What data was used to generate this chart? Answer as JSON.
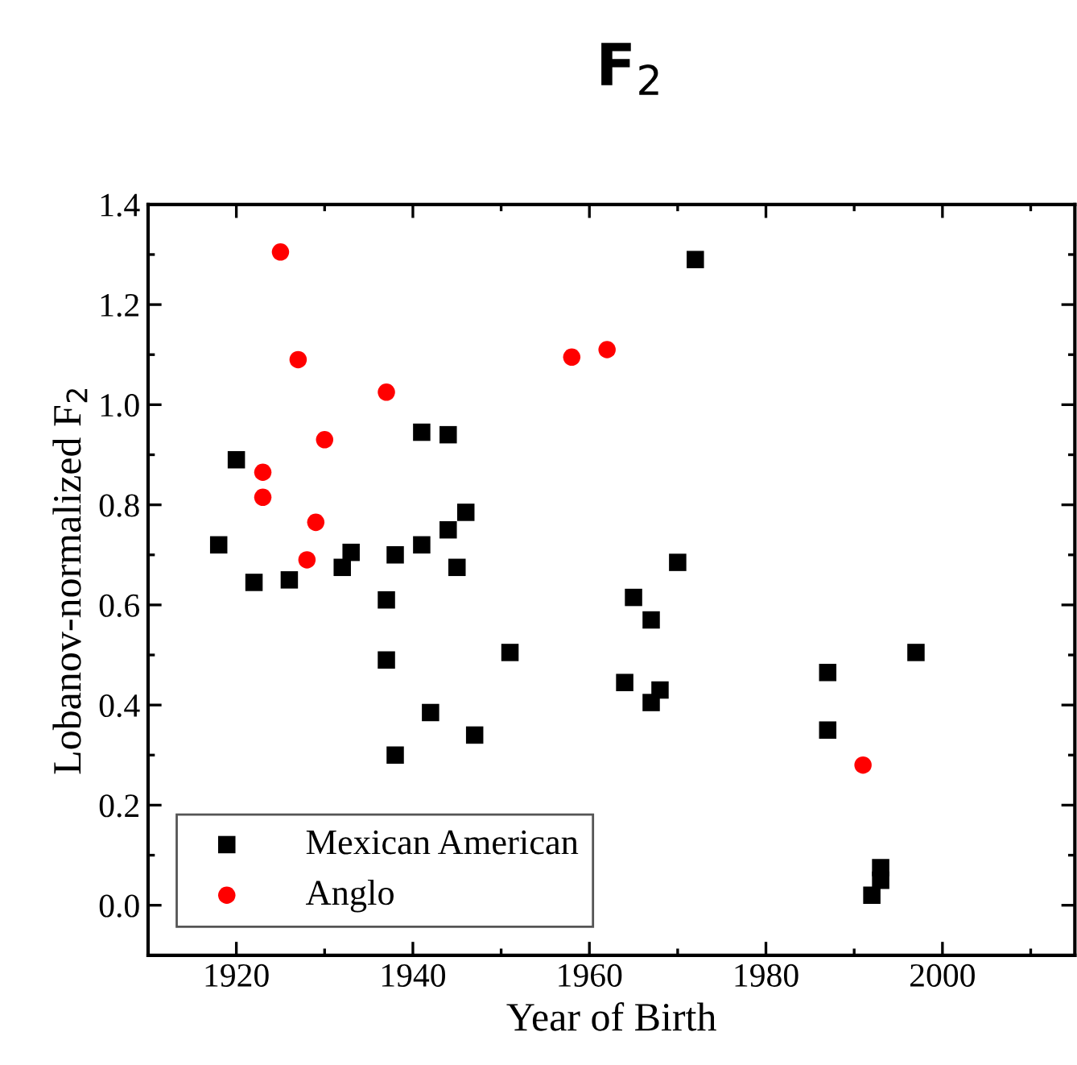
{
  "chart_data": {
    "type": "scatter",
    "title": "F$_{2}$",
    "xlabel": "Year of Birth",
    "ylabel": "Lobanov-normalized F$_{2}$",
    "xlim": [
      1910,
      2015
    ],
    "xticks": [
      1920,
      1940,
      1960,
      1980,
      2000
    ],
    "ylim": [
      -0.1,
      1.4
    ],
    "yticks": [
      {
        "value": 0,
        "label": "0.0"
      },
      0.2,
      0.4,
      0.6,
      0.8,
      {
        "value": 1,
        "label": "1.0"
      },
      1.2,
      1.4
    ],
    "grid": false,
    "legend": "bottom left",
    "series": [
      {
        "name": "Mexican American",
        "color": "#000000",
        "marker": "square",
        "x": [
          1918,
          1920,
          1922,
          1926,
          1932,
          1933,
          1937,
          1937,
          1938,
          1938,
          1941,
          1941,
          1942,
          1944,
          1944,
          1945,
          1946,
          1947,
          1951,
          1964,
          1965,
          1967,
          1967,
          1968,
          1970,
          1972,
          1987,
          1987,
          1992,
          1993,
          1993,
          1997
        ],
        "values": [
          0.72,
          0.89,
          0.645,
          0.65,
          0.675,
          0.705,
          0.61,
          0.49,
          0.7,
          0.3,
          0.945,
          0.72,
          0.385,
          0.94,
          0.75,
          0.675,
          0.785,
          0.34,
          0.505,
          0.445,
          0.615,
          0.57,
          0.405,
          0.43,
          0.685,
          1.29,
          0.465,
          0.35,
          0.02,
          0.05,
          0.075,
          0.505
        ]
      },
      {
        "name": "Anglo",
        "color": "#ff0000",
        "marker": "circle",
        "x": [
          1923,
          1923,
          1925,
          1927,
          1928,
          1929,
          1930,
          1937,
          1958,
          1962,
          1991
        ],
        "values": [
          0.865,
          0.815,
          1.305,
          1.09,
          0.69,
          0.765,
          0.93,
          1.025,
          1.095,
          1.11,
          0.28
        ]
      }
    ]
  }
}
